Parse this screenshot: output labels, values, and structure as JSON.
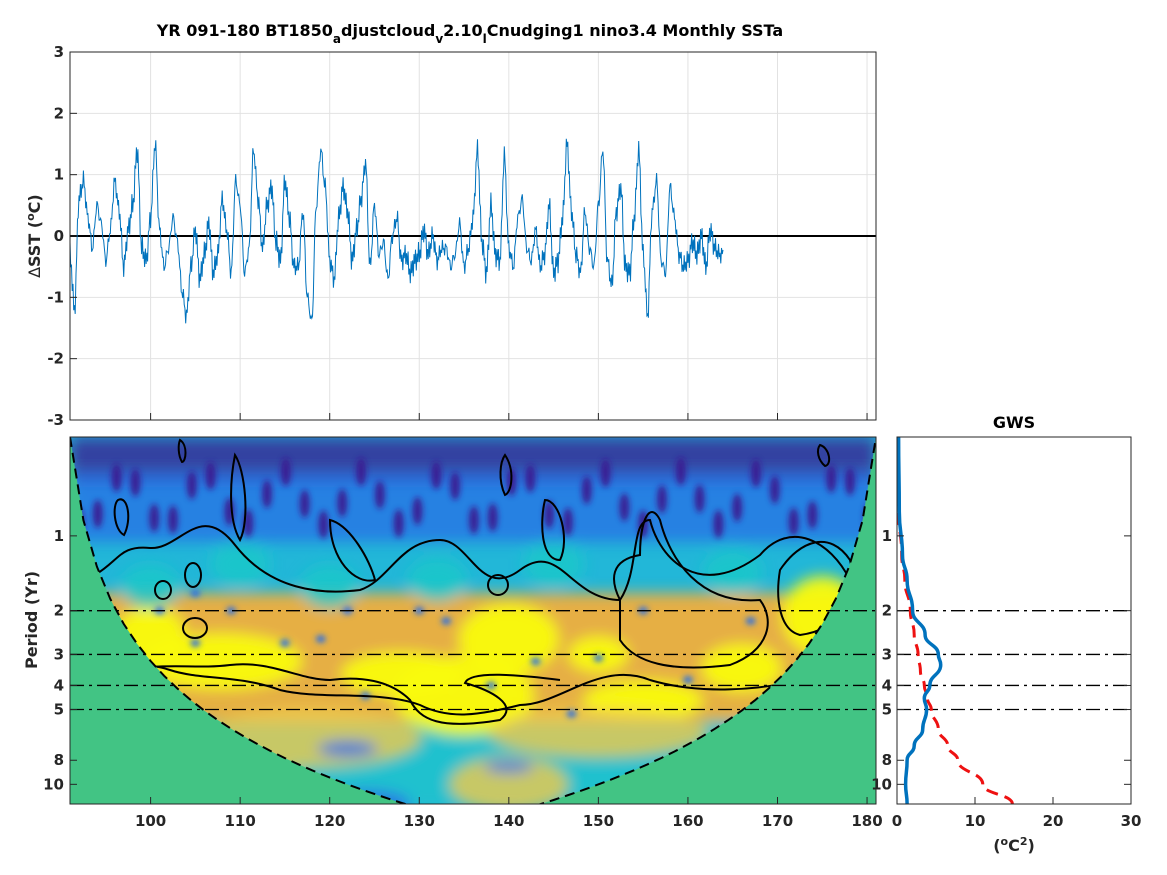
{
  "title": {
    "t1": "YR 091-180 BT1850",
    "s1": "a",
    "t2": "djustcloud",
    "s2": "v",
    "t3": "2.10",
    "s3": "l",
    "t4": "Cnudging1 nino3.4 Monthly SSTa"
  },
  "chart_data": [
    {
      "type": "line",
      "ylabel_delta": "∆",
      "ylabel_main": "SST (",
      "ylabel_sup": "o",
      "ylabel_end": "C)",
      "xlim": [
        91,
        181
      ],
      "ylim": [
        -3,
        3
      ],
      "x_ticks": [
        100,
        110,
        120,
        130,
        140,
        150,
        160,
        170,
        180
      ],
      "y_ticks": [
        "3",
        "2",
        "1",
        "0",
        "-1",
        "-2",
        "-3"
      ],
      "grid": true,
      "zero_line": true,
      "series": [
        {
          "color": "#0072bd",
          "x_start": 91.0,
          "x_step": 0.5,
          "values": [
            -0.3,
            -1.2,
            0.6,
            0.9,
            0.3,
            -0.2,
            0.5,
            0.2,
            -0.4,
            0.1,
            0.9,
            0.4,
            -0.5,
            0.1,
            0.5,
            1.4,
            -0.2,
            -0.4,
            0.3,
            1.5,
            0.1,
            -0.5,
            -0.2,
            0.3,
            -0.1,
            -0.9,
            -1.3,
            -0.5,
            0.1,
            -0.7,
            -0.3,
            0.2,
            -0.6,
            -0.3,
            0.6,
            0.1,
            -0.6,
            0.9,
            0.5,
            -0.6,
            -0.2,
            1.4,
            0.6,
            -0.2,
            0.5,
            0.8,
            -0.1,
            -0.4,
            0.9,
            0.3,
            -0.5,
            -0.5,
            0.4,
            -1.0,
            -1.4,
            0.5,
            1.4,
            0.8,
            -0.4,
            -0.7,
            0.3,
            0.8,
            0.4,
            -0.4,
            0.1,
            0.6,
            1.2,
            -0.5,
            0.5,
            -0.3,
            -0.1,
            -0.7,
            0.0,
            0.3,
            -0.4,
            -0.3,
            -0.6,
            -0.4,
            -0.3,
            0.1,
            -0.3,
            0.0,
            -0.4,
            -0.2,
            -0.2,
            -0.5,
            -0.3,
            0.2,
            -0.5,
            -0.2,
            0.3,
            1.4,
            -0.1,
            -0.6,
            0.5,
            -0.3,
            -0.4,
            1.3,
            -0.2,
            -0.5,
            0.3,
            0.6,
            -0.2,
            -0.4,
            0.1,
            -0.5,
            -0.3,
            0.5,
            -0.6,
            -0.4,
            0.3,
            1.5,
            0.4,
            -0.3,
            -0.6,
            0.4,
            -0.2,
            -0.5,
            0.5,
            1.4,
            -0.4,
            -0.8,
            0.4,
            0.8,
            -0.5,
            -0.6,
            0.3,
            1.4,
            -0.3,
            -1.3,
            0.4,
            0.9,
            -0.4,
            -0.6,
            0.8,
            0.3,
            -0.3,
            -0.5,
            -0.4,
            -0.1,
            -0.3,
            0.0,
            -0.5,
            0.1,
            -0.2,
            -0.3
          ]
        }
      ]
    },
    {
      "type": "heatmap",
      "ylabel": "Period (Yr)",
      "xlim": [
        91,
        181
      ],
      "ylim_period": [
        0.4,
        12
      ],
      "x_ticks": [
        "100",
        "110",
        "120",
        "130",
        "140",
        "150",
        "160",
        "170",
        "180"
      ],
      "y_ticks": [
        {
          "period": 1,
          "label": "1"
        },
        {
          "period": 2,
          "label": "2"
        },
        {
          "period": 3,
          "label": "3"
        },
        {
          "period": 4,
          "label": "4"
        },
        {
          "period": 5,
          "label": "5"
        },
        {
          "period": 8,
          "label": "8"
        },
        {
          "period": 10,
          "label": "10"
        }
      ],
      "reference_periods": [
        2,
        3,
        4,
        5
      ],
      "colors": {
        "high": "#f9fb0e",
        "mid": "#fcae33",
        "cyan": "#1cc8c8",
        "blue": "#2a6fe6",
        "low": "#3a1a8f",
        "coi_fill": "#42c484"
      }
    },
    {
      "type": "line",
      "title": "GWS",
      "xlabel_main": "(",
      "xlabel_sup1": "o",
      "xlabel_mid": "C",
      "xlabel_sup2": "2",
      "xlabel_end": ")",
      "xlim": [
        0,
        30
      ],
      "x_ticks": [
        "0",
        "10",
        "20",
        "30"
      ],
      "y_ticks": [
        "1",
        "2",
        "3",
        "4",
        "5",
        "8",
        "10"
      ],
      "series": [
        {
          "style": "solid",
          "color": "#0072bd",
          "period": [
            0.4,
            0.8,
            1.2,
            1.5,
            2.0,
            2.5,
            3.0,
            3.3,
            4.0,
            4.5,
            5.0,
            6.0,
            7.0,
            8.0,
            10.0,
            12.0
          ],
          "power": [
            0.2,
            0.3,
            0.7,
            1.3,
            2.0,
            3.6,
            5.3,
            5.6,
            4.2,
            3.5,
            3.8,
            3.3,
            2.2,
            1.3,
            1.1,
            1.3
          ]
        },
        {
          "style": "dashed",
          "color": "#ee1111",
          "period": [
            0.4,
            0.8,
            1.2,
            1.5,
            2.0,
            2.5,
            3.0,
            3.5,
            4.0,
            4.5,
            5.0,
            6.0,
            7.0,
            8.0,
            10.0,
            12.0
          ],
          "power": [
            0.0,
            0.2,
            0.6,
            1.0,
            1.7,
            2.2,
            2.7,
            3.0,
            3.5,
            3.9,
            4.4,
            5.3,
            6.5,
            7.8,
            11.0,
            14.8
          ]
        }
      ]
    }
  ]
}
